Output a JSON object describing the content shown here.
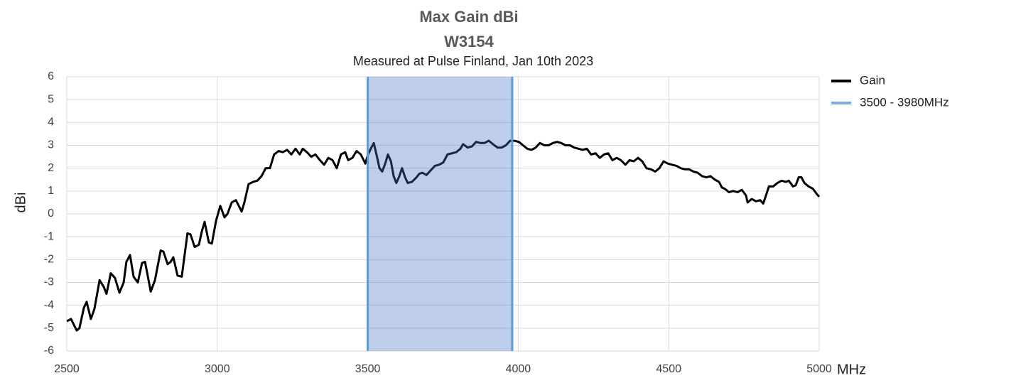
{
  "chart_data": {
    "type": "line",
    "title": "Max Gain dBi",
    "title2": "W3154",
    "subtitle": "Measured at Pulse Finland, Jan 10th 2023",
    "xlabel": "MHz",
    "ylabel": "dBi",
    "xlim": [
      2500,
      5000
    ],
    "xticks": [
      2500,
      3000,
      3500,
      4000,
      4500,
      5000
    ],
    "ylim": [
      -6,
      6
    ],
    "yticks": [
      -6,
      -5,
      -4,
      -3,
      -2,
      -1,
      0,
      1,
      2,
      3,
      4,
      5,
      6
    ],
    "grid": true,
    "legend": "right",
    "x": [
      2500,
      2514,
      2533,
      2542,
      2557,
      2566,
      2580,
      2592,
      2609,
      2623,
      2632,
      2646,
      2660,
      2675,
      2689,
      2698,
      2710,
      2722,
      2736,
      2750,
      2760,
      2779,
      2793,
      2812,
      2821,
      2835,
      2845,
      2854,
      2868,
      2882,
      2901,
      2911,
      2925,
      2939,
      2949,
      2958,
      2972,
      2982,
      2996,
      3010,
      3024,
      3034,
      3048,
      3062,
      3081,
      3090,
      3104,
      3119,
      3133,
      3147,
      3161,
      3175,
      3189,
      3204,
      3218,
      3232,
      3246,
      3260,
      3274,
      3284,
      3298,
      3312,
      3326,
      3341,
      3355,
      3369,
      3383,
      3397,
      3411,
      3425,
      3435,
      3449,
      3463,
      3477,
      3492,
      3501,
      3510,
      3520,
      3529,
      3539,
      3548,
      3558,
      3567,
      3577,
      3586,
      3595,
      3605,
      3614,
      3624,
      3633,
      3647,
      3662,
      3671,
      3681,
      3695,
      3709,
      3723,
      3737,
      3751,
      3765,
      3780,
      3794,
      3808,
      3817,
      3832,
      3846,
      3860,
      3874,
      3888,
      3902,
      3916,
      3931,
      3945,
      3959,
      3973,
      3987,
      4002,
      4016,
      4030,
      4044,
      4058,
      4072,
      4087,
      4101,
      4115,
      4129,
      4143,
      4157,
      4172,
      4186,
      4200,
      4214,
      4228,
      4242,
      4257,
      4271,
      4285,
      4299,
      4313,
      4327,
      4341,
      4356,
      4370,
      4384,
      4398,
      4412,
      4426,
      4441,
      4455,
      4469,
      4483,
      4497,
      4511,
      4526,
      4540,
      4554,
      4568,
      4582,
      4596,
      4611,
      4625,
      4639,
      4653,
      4667,
      4677,
      4686,
      4700,
      4714,
      4729,
      4743,
      4757,
      4762,
      4776,
      4790,
      4804,
      4814,
      4823,
      4833,
      4847,
      4861,
      4875,
      4889,
      4899,
      4913,
      4922,
      4932,
      4941,
      4951,
      4965,
      4979,
      4993,
      5000
    ],
    "series": [
      {
        "name": "Gain",
        "color": "#000000",
        "values": [
          -4.7,
          -4.6,
          -5.1,
          -5.0,
          -4.1,
          -3.85,
          -4.6,
          -4.15,
          -2.9,
          -3.2,
          -3.5,
          -2.6,
          -2.8,
          -3.45,
          -3.0,
          -2.1,
          -1.8,
          -2.75,
          -3.0,
          -2.15,
          -2.1,
          -3.4,
          -2.9,
          -1.6,
          -1.65,
          -2.2,
          -2.1,
          -1.9,
          -2.7,
          -2.75,
          -0.85,
          -0.9,
          -1.45,
          -1.35,
          -0.75,
          -0.35,
          -1.25,
          -1.3,
          -0.3,
          0.35,
          -0.15,
          0.0,
          0.5,
          0.6,
          0.1,
          0.5,
          1.3,
          1.4,
          1.45,
          1.65,
          2.0,
          2.0,
          2.6,
          2.75,
          2.7,
          2.8,
          2.6,
          2.85,
          2.6,
          2.85,
          2.7,
          2.5,
          2.6,
          2.35,
          2.15,
          2.45,
          2.35,
          2.0,
          2.6,
          2.7,
          2.35,
          2.45,
          2.75,
          2.6,
          2.2,
          2.6,
          2.85,
          3.1,
          2.6,
          2.0,
          1.85,
          2.2,
          2.6,
          2.3,
          1.65,
          1.35,
          1.65,
          2.0,
          1.6,
          1.35,
          1.4,
          1.6,
          1.75,
          1.8,
          1.7,
          1.9,
          2.1,
          2.15,
          2.25,
          2.6,
          2.65,
          2.7,
          2.85,
          3.05,
          2.9,
          2.95,
          3.15,
          3.1,
          3.1,
          3.2,
          3.05,
          2.9,
          2.9,
          3.0,
          3.2,
          3.2,
          3.15,
          3.0,
          2.85,
          2.8,
          2.9,
          3.1,
          3.0,
          3.0,
          3.1,
          3.15,
          3.1,
          3.0,
          3.0,
          2.9,
          2.85,
          2.8,
          2.85,
          2.6,
          2.65,
          2.45,
          2.6,
          2.65,
          2.35,
          2.45,
          2.35,
          2.15,
          2.35,
          2.3,
          2.45,
          2.3,
          2.0,
          1.95,
          1.85,
          2.0,
          2.3,
          2.2,
          2.15,
          2.1,
          2.0,
          1.95,
          1.95,
          1.85,
          1.8,
          1.65,
          1.6,
          1.65,
          1.5,
          1.4,
          1.15,
          1.1,
          0.95,
          1.0,
          0.95,
          1.05,
          0.8,
          0.5,
          0.65,
          0.55,
          0.6,
          0.45,
          0.8,
          1.2,
          1.2,
          1.35,
          1.45,
          1.4,
          1.45,
          1.2,
          1.25,
          1.6,
          1.6,
          1.35,
          1.2,
          1.1,
          0.85,
          0.75
        ]
      }
    ],
    "bands": [
      {
        "name": "3500 - 3980MHz",
        "x": [
          3500,
          3980
        ],
        "color": "#4472c4",
        "edge_color": "#5b9bd5"
      }
    ]
  }
}
